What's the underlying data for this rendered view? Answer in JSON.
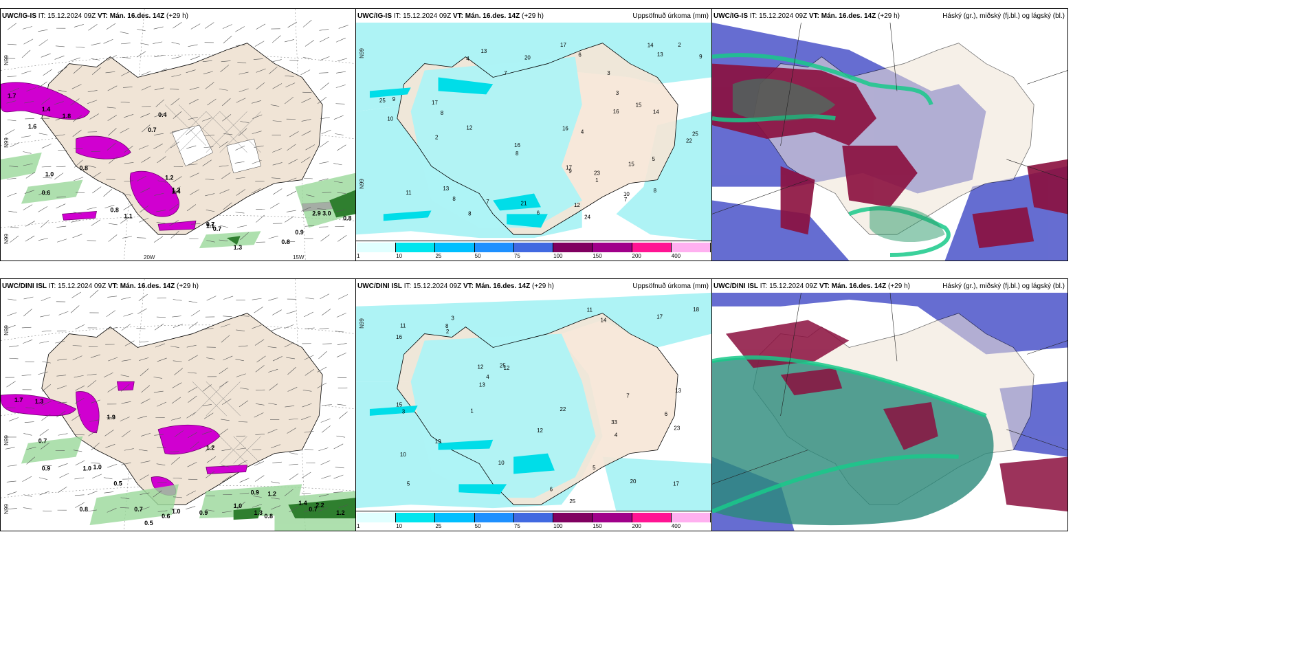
{
  "panels": [
    {
      "model": "UWC/IG-IS",
      "it_label": "IT:",
      "it_value": "15.12.2024 09Z",
      "vt_label": "VT:",
      "vt_value": "Mán. 16.des. 14Z",
      "lead": "(+29 h)",
      "right_title": "",
      "lat1": "N99",
      "lat2": "N99",
      "lat3": "N99",
      "lon1": "20W",
      "lon2": "15W"
    },
    {
      "model": "UWC/IG-IS",
      "it_label": "IT:",
      "it_value": "15.12.2024 09Z",
      "vt_label": "VT:",
      "vt_value": "Mán. 16.des. 14Z",
      "lead": "(+29 h)",
      "right_title": "Uppsöfnuð úrkoma (mm)",
      "lat1": "N99",
      "lat2": "N99"
    },
    {
      "model": "UWC/IG-IS",
      "it_label": "IT:",
      "it_value": "15.12.2024 09Z",
      "vt_label": "VT:",
      "vt_value": "Mán. 16.des. 14Z",
      "lead": "(+29 h)",
      "right_title": "Háský (gr.), miðský (fj.bl.) og lágský (bl.)"
    },
    {
      "model": "UWC/DINI ISL",
      "it_label": "IT:",
      "it_value": "15.12.2024 09Z",
      "vt_label": "VT:",
      "vt_value": "Mán. 16.des. 14Z",
      "lead": "(+29 h)",
      "right_title": "",
      "lat1": "N99",
      "lat2": "N99",
      "lat3": "N99"
    },
    {
      "model": "UWC/DINI ISL",
      "it_label": "IT:",
      "it_value": "15.12.2024 09Z",
      "vt_label": "VT:",
      "vt_value": "Mán. 16.des. 14Z",
      "lead": "(+29 h)",
      "right_title": "Uppsöfnuð úrkoma (mm)",
      "lat1": "N99"
    },
    {
      "model": "UWC/DINI ISL",
      "it_label": "IT:",
      "it_value": "15.12.2024 09Z",
      "vt_label": "VT:",
      "vt_value": "Mán. 16.des. 14Z",
      "lead": "(+29 h)",
      "right_title": "Háský (gr.), miðský (fj.bl.) og lágský (bl.)"
    }
  ],
  "legend": {
    "ticks": [
      "1",
      "10",
      "25",
      "50",
      "75",
      "100",
      "150",
      "200",
      "400"
    ],
    "colors": [
      "#e0ffff",
      "#00e5ee",
      "#00bfff",
      "#1e90ff",
      "#4169e1",
      "#800060",
      "#a0008a",
      "#ff1493",
      "#ffb0f0"
    ]
  },
  "precip_labels_top": [
    "24",
    "4",
    "13",
    "17",
    "15",
    "12",
    "22",
    "12",
    "8",
    "8",
    "11",
    "25",
    "16",
    "17",
    "16",
    "14",
    "10",
    "13",
    "15",
    "14",
    "10",
    "9",
    "8",
    "7",
    "4",
    "3",
    "2",
    "8",
    "6",
    "7",
    "1",
    "2",
    "3",
    "7",
    "13",
    "21",
    "17",
    "9",
    "25",
    "23",
    "20",
    "16",
    "9",
    "8",
    "6",
    "5"
  ],
  "precip_labels_bottom": [
    "33",
    "6",
    "5",
    "3",
    "12",
    "20",
    "10",
    "14",
    "12",
    "25",
    "16",
    "15",
    "11",
    "17",
    "10",
    "13",
    "12",
    "22",
    "25",
    "19",
    "18",
    "17",
    "13",
    "23",
    "11",
    "8",
    "4",
    "3",
    "2",
    "7",
    "6",
    "5",
    "4",
    "1"
  ],
  "wind_labels_top": [
    "1.7",
    "1.4",
    "1.8",
    "1.6",
    "1.0",
    "0.6",
    "0.8",
    "1.1",
    "0.8",
    "0.7",
    "1.1",
    "0.8",
    "1.3",
    "1.2",
    "1.4",
    "0.4",
    "0.7",
    "3.0",
    "2.9",
    "1.2",
    "0.9",
    "0.7",
    "0.8"
  ],
  "wind_labels_bottom": [
    "1.7",
    "1.3",
    "1.9",
    "1.0",
    "0.7",
    "0.9",
    "1.0",
    "0.5",
    "0.8",
    "0.7",
    "1.0",
    "0.9",
    "1.0",
    "1.3",
    "0.8",
    "0.7",
    "1.4",
    "1.2",
    "2.2",
    "0.5",
    "0.6",
    "1.2",
    "0.9",
    "1.2"
  ]
}
